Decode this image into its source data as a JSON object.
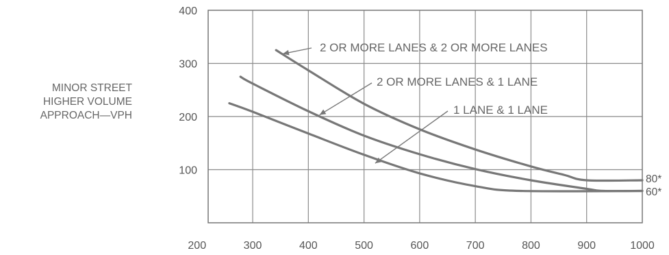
{
  "chart_data": {
    "type": "line",
    "title": "",
    "xlabel": "",
    "ylabel_lines": [
      "MINOR STREET",
      "HIGHER VOLUME",
      "APPROACH—VPH"
    ],
    "xlim": [
      220,
      1000
    ],
    "ylim": [
      0,
      400
    ],
    "x_ticks": [
      200,
      300,
      400,
      500,
      600,
      700,
      800,
      900,
      1000
    ],
    "y_ticks": [
      100,
      200,
      300,
      400
    ],
    "grid": true,
    "series": [
      {
        "name": "2 OR MORE LANES & 2 OR MORE LANES",
        "end_label": "80*",
        "color": "#777777",
        "x": [
          342,
          400,
          500,
          600,
          700,
          800,
          860,
          900,
          1000
        ],
        "y": [
          325,
          287,
          224,
          176,
          138,
          106,
          90,
          80,
          80
        ]
      },
      {
        "name": "2 OR MORE LANES & 1 LANE",
        "end_label": "60*",
        "color": "#777777",
        "x": [
          278,
          300,
          400,
          500,
          600,
          700,
          800,
          900,
          930,
          1000
        ],
        "y": [
          275,
          262,
          210,
          164,
          129,
          101,
          80,
          64,
          60,
          60
        ]
      },
      {
        "name": "1 LANE & 1 LANE",
        "end_label": "",
        "color": "#777777",
        "x": [
          258,
          300,
          400,
          500,
          600,
          700,
          780,
          1000
        ],
        "y": [
          225,
          209,
          168,
          128,
          93,
          69,
          60,
          60
        ]
      }
    ],
    "annotations": [
      {
        "text": "2 OR MORE LANES & 2 OR MORE LANES",
        "series": 0,
        "arrow_to": [
          354,
          318
        ]
      },
      {
        "text": "2 OR MORE LANES & 1 LANE",
        "series": 1,
        "arrow_to": [
          420,
          203
        ]
      },
      {
        "text": "1 LANE & 1 LANE",
        "series": 2,
        "arrow_to": [
          520,
          112
        ]
      }
    ]
  }
}
